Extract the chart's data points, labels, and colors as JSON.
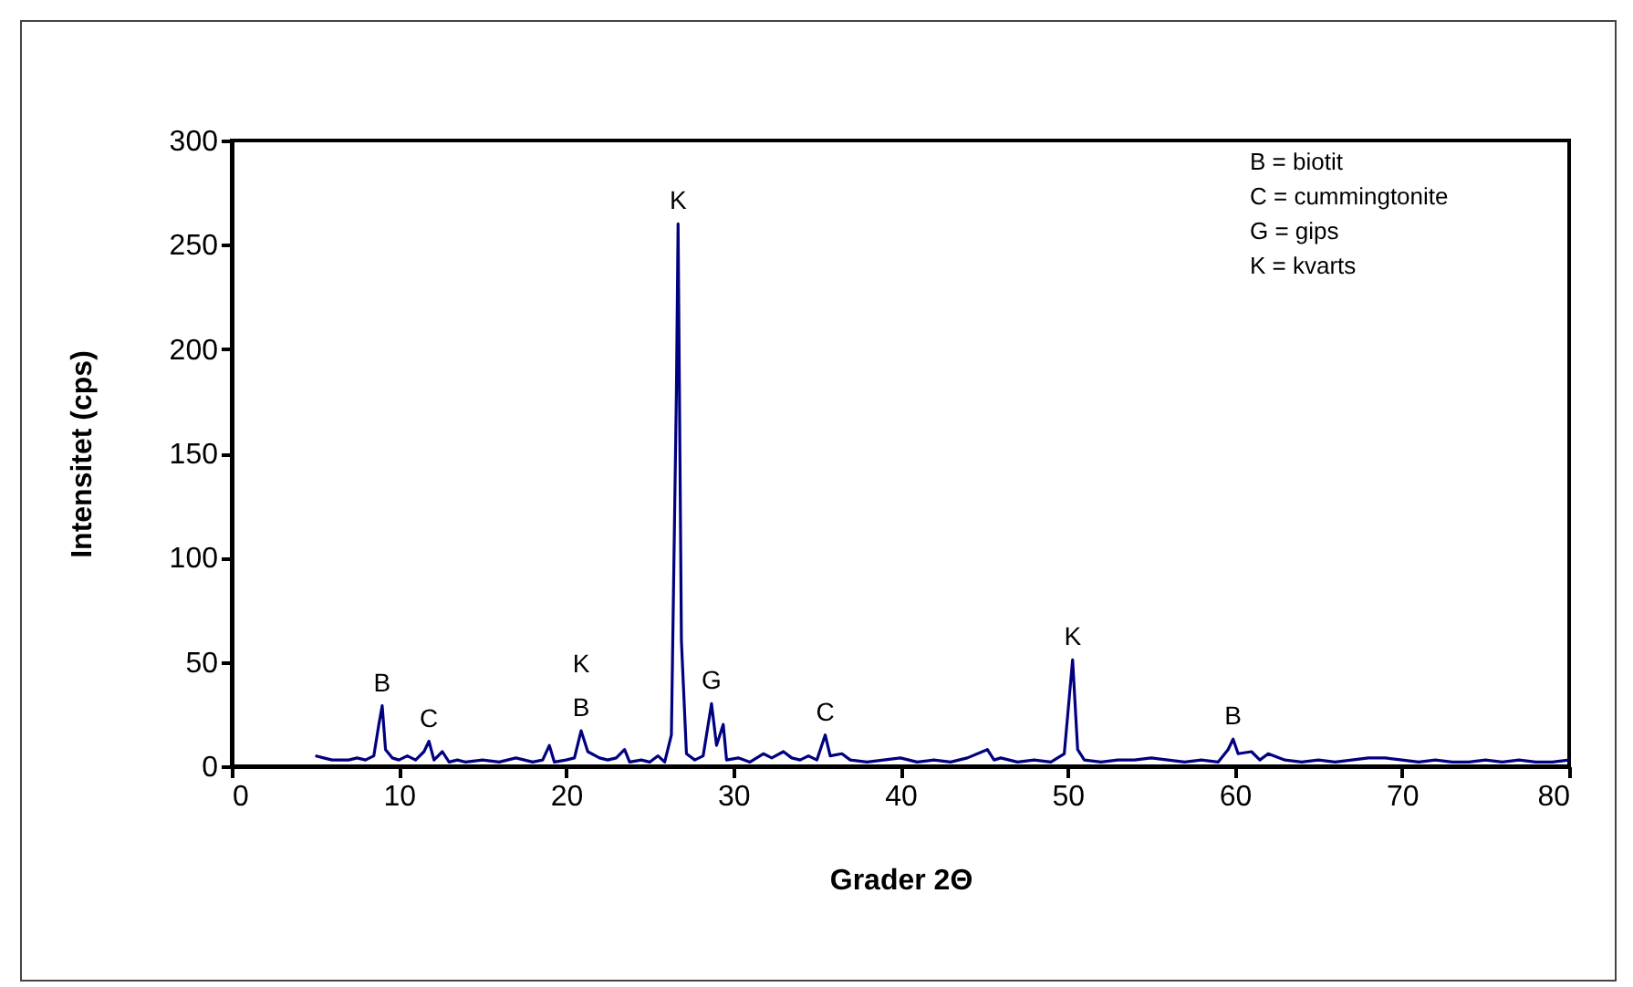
{
  "chart_data": {
    "type": "line",
    "xlabel": "Grader 2Θ",
    "ylabel": "Intensitet (cps)",
    "xlim": [
      0,
      80
    ],
    "ylim": [
      0,
      300
    ],
    "xticks": [
      0,
      10,
      20,
      30,
      40,
      50,
      60,
      70,
      80
    ],
    "yticks": [
      0,
      50,
      100,
      150,
      200,
      250,
      300
    ],
    "grid": false,
    "marker": "none",
    "line_style": "solid",
    "annotations": [
      "B = biotit",
      "C = cummingtonite",
      "G = gips",
      "K = kvarts",
      {
        "text": "B",
        "x": 9.0,
        "y": 29
      },
      {
        "text": "C",
        "x": 11.8,
        "y": 12
      },
      {
        "text": "B",
        "x": 20.9,
        "y": 17
      },
      {
        "text": "K",
        "x": 20.9,
        "y": 17
      },
      {
        "text": "K",
        "x": 26.7,
        "y": 260
      },
      {
        "text": "G",
        "x": 28.7,
        "y": 30
      },
      {
        "text": "C",
        "x": 35.5,
        "y": 15
      },
      {
        "text": "K",
        "x": 50.3,
        "y": 51
      },
      {
        "text": "B",
        "x": 59.9,
        "y": 13
      }
    ],
    "series": [
      {
        "color": "#000080",
        "x": [
          5,
          5.5,
          6,
          7,
          7.5,
          8,
          8.5,
          8.8,
          9.0,
          9.2,
          9.6,
          10,
          10.5,
          11,
          11.5,
          11.8,
          12.1,
          12.6,
          13,
          13.5,
          14,
          15,
          16,
          17,
          17.5,
          18,
          18.6,
          19.0,
          19.3,
          20,
          20.5,
          20.9,
          21.3,
          22,
          22.5,
          23,
          23.5,
          23.8,
          24.5,
          25,
          25.5,
          25.9,
          26.3,
          26.6,
          26.7,
          26.9,
          27.2,
          27.7,
          28.2,
          28.7,
          29.0,
          29.4,
          29.6,
          30.3,
          31,
          31.8,
          32.3,
          33,
          33.5,
          34,
          34.5,
          35,
          35.5,
          35.8,
          36.5,
          37,
          38,
          39,
          40,
          41,
          42,
          43,
          44,
          45.2,
          45.6,
          46,
          47,
          48,
          49,
          49.8,
          50.3,
          50.6,
          51,
          52,
          53,
          54,
          55,
          56,
          57,
          58,
          59,
          59.6,
          59.9,
          60.2,
          61,
          61.5,
          62,
          63,
          64,
          65,
          66,
          67,
          68,
          69,
          70,
          71,
          72,
          73,
          74,
          75,
          76,
          77,
          78,
          79,
          80
        ],
        "values": [
          5,
          4,
          3,
          3,
          4,
          3,
          5,
          20,
          29,
          8,
          4,
          3,
          5,
          3,
          7,
          12,
          3,
          7,
          2,
          3,
          2,
          3,
          2,
          4,
          3,
          2,
          3,
          10,
          2,
          3,
          4,
          17,
          7,
          4,
          3,
          4,
          8,
          2,
          3,
          2,
          5,
          2,
          15,
          180,
          260,
          60,
          6,
          3,
          5,
          30,
          10,
          20,
          3,
          4,
          2,
          6,
          4,
          7,
          4,
          3,
          5,
          3,
          15,
          5,
          6,
          3,
          2,
          3,
          4,
          2,
          3,
          2,
          4,
          8,
          3,
          4,
          2,
          3,
          2,
          6,
          51,
          8,
          3,
          2,
          3,
          3,
          4,
          3,
          2,
          3,
          2,
          8,
          13,
          6,
          7,
          3,
          6,
          3,
          2,
          3,
          2,
          3,
          4,
          4,
          3,
          2,
          3,
          2,
          2,
          3,
          2,
          3,
          2,
          2,
          3
        ]
      }
    ]
  }
}
